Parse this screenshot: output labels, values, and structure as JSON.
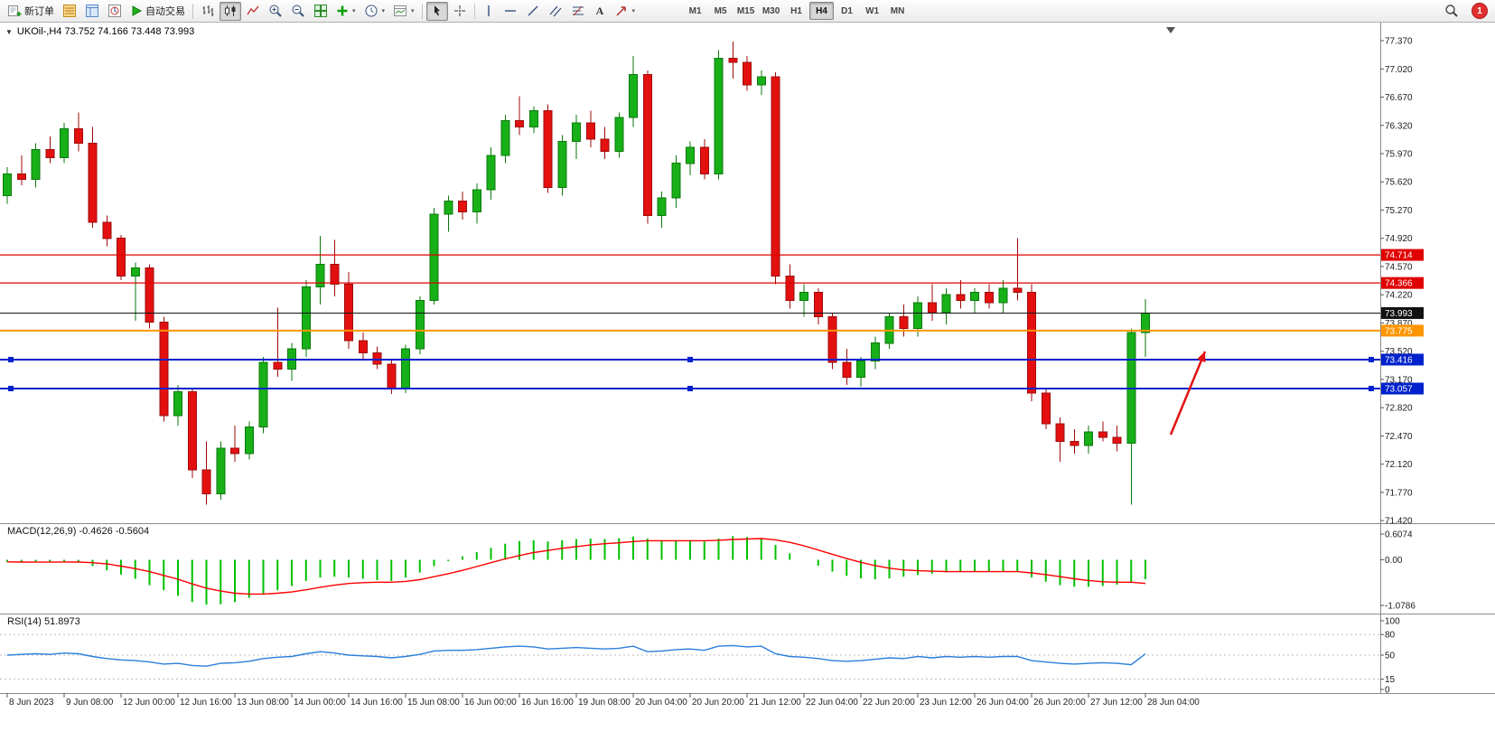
{
  "toolbar": {
    "new_order_label": "新订单",
    "autotrading_label": "自动交易",
    "timeframes": [
      "M1",
      "M5",
      "M15",
      "M30",
      "H1",
      "H4",
      "D1",
      "W1",
      "MN"
    ],
    "active_timeframe": "H4",
    "notification_count": "1",
    "icon_names": [
      "new-order",
      "market-watch",
      "data-window",
      "navigator",
      "autotrading",
      "bar-chart",
      "candlestick-chart",
      "line-chart",
      "zoom-in",
      "zoom-out",
      "tile-windows",
      "indicators",
      "periods",
      "templates",
      "cursor",
      "crosshair",
      "vertical-line",
      "horizontal-line",
      "trendline",
      "equidistant-channel",
      "fibonacci",
      "text",
      "arrows",
      "search",
      "notification"
    ]
  },
  "chart": {
    "marker": "▼",
    "title": "UKOil-,H4 73.752 74.166 73.448 73.993",
    "symbol": "UKOil-",
    "period": "H4",
    "ohlc_caption": {
      "open": "73.752",
      "high": "74.166",
      "low": "73.448",
      "close": "73.993"
    }
  },
  "colors": {
    "bull": "#18b018",
    "bull_border": "#0b7a0b",
    "bear": "#e41010",
    "bear_border": "#9e0b0b",
    "macd_bar": "#00c000",
    "macd_signal": "#ff0000",
    "rsi_line": "#2a7fdc",
    "axis_text": "#1a1a1a"
  },
  "hlines": [
    {
      "price": 74.714,
      "label": "74.714",
      "color": "#e00000",
      "width": 1.2,
      "handles": false
    },
    {
      "price": 74.366,
      "label": "74.366",
      "color": "#e00000",
      "width": 1.2,
      "handles": false
    },
    {
      "price": 73.993,
      "label": "73.993",
      "color": "#111111",
      "width": 1,
      "handles": false
    },
    {
      "price": 73.775,
      "label": "73.775",
      "color": "#ff9500",
      "width": 2,
      "handles": false
    },
    {
      "price": 73.416,
      "label": "73.416",
      "color": "#0022cc",
      "width": 2,
      "handles": true
    },
    {
      "price": 73.057,
      "label": "73.057",
      "color": "#0022cc",
      "width": 2,
      "handles": true
    }
  ],
  "annotation": {
    "type": "arrow",
    "color": "#e31212",
    "from": [
      1296,
      456
    ],
    "to": [
      1334,
      364
    ]
  },
  "time_axis": [
    "8 Jun 2023",
    "9 Jun 08:00",
    "12 Jun 00:00",
    "12 Jun 16:00",
    "13 Jun 08:00",
    "14 Jun 00:00",
    "14 Jun 16:00",
    "15 Jun 08:00",
    "16 Jun 00:00",
    "16 Jun 16:00",
    "19 Jun 08:00",
    "20 Jun 04:00",
    "20 Jun 20:00",
    "21 Jun 12:00",
    "22 Jun 04:00",
    "22 Jun 20:00",
    "23 Jun 12:00",
    "26 Jun 04:00",
    "26 Jun 20:00",
    "27 Jun 12:00",
    "28 Jun 04:00"
  ],
  "chart_data": {
    "type": "candlestick",
    "symbol": "UKOil-",
    "timeframe": "H4",
    "y_range": [
      71.41,
      77.46
    ],
    "price_ticks": [
      "77.370",
      "77.020",
      "76.670",
      "76.320",
      "75.970",
      "75.620",
      "75.270",
      "74.920",
      "74.570",
      "74.220",
      "73.870",
      "73.520",
      "73.170",
      "72.820",
      "72.470",
      "72.120",
      "71.770",
      "71.420"
    ],
    "ohlc": [
      [
        75.45,
        75.8,
        75.35,
        75.72
      ],
      [
        75.72,
        75.95,
        75.58,
        75.65
      ],
      [
        75.65,
        76.1,
        75.55,
        76.02
      ],
      [
        76.02,
        76.18,
        75.85,
        75.92
      ],
      [
        75.92,
        76.35,
        75.85,
        76.28
      ],
      [
        76.28,
        76.48,
        76.0,
        76.1
      ],
      [
        76.1,
        76.3,
        75.05,
        75.12
      ],
      [
        75.12,
        75.2,
        74.82,
        74.92
      ],
      [
        74.92,
        74.96,
        74.4,
        74.45
      ],
      [
        74.45,
        74.62,
        73.9,
        74.55
      ],
      [
        74.55,
        74.6,
        73.8,
        73.88
      ],
      [
        73.88,
        73.95,
        72.65,
        72.72
      ],
      [
        72.72,
        73.1,
        72.6,
        73.02
      ],
      [
        73.02,
        73.05,
        71.95,
        72.05
      ],
      [
        72.05,
        72.4,
        71.62,
        71.75
      ],
      [
        71.75,
        72.4,
        71.68,
        72.32
      ],
      [
        72.32,
        72.6,
        72.15,
        72.25
      ],
      [
        72.25,
        72.65,
        72.18,
        72.58
      ],
      [
        72.58,
        73.45,
        72.5,
        73.38
      ],
      [
        73.38,
        74.06,
        73.2,
        73.3
      ],
      [
        73.3,
        73.62,
        73.15,
        73.55
      ],
      [
        73.55,
        74.4,
        73.45,
        74.32
      ],
      [
        74.32,
        74.95,
        74.1,
        74.6
      ],
      [
        74.6,
        74.9,
        74.2,
        74.35
      ],
      [
        74.35,
        74.5,
        73.55,
        73.65
      ],
      [
        73.65,
        73.75,
        73.42,
        73.5
      ],
      [
        73.5,
        73.58,
        73.3,
        73.36
      ],
      [
        73.36,
        73.42,
        72.99,
        73.05
      ],
      [
        73.05,
        73.6,
        73.0,
        73.55
      ],
      [
        73.55,
        74.2,
        73.48,
        74.15
      ],
      [
        74.15,
        75.3,
        74.1,
        75.22
      ],
      [
        75.22,
        75.45,
        75.0,
        75.38
      ],
      [
        75.38,
        75.5,
        75.15,
        75.25
      ],
      [
        75.25,
        75.6,
        75.1,
        75.52
      ],
      [
        75.52,
        76.05,
        75.4,
        75.95
      ],
      [
        75.95,
        76.45,
        75.85,
        76.38
      ],
      [
        76.38,
        76.68,
        76.2,
        76.3
      ],
      [
        76.3,
        76.55,
        76.22,
        76.5
      ],
      [
        76.5,
        76.58,
        75.48,
        75.55
      ],
      [
        75.55,
        76.2,
        75.45,
        76.12
      ],
      [
        76.12,
        76.45,
        75.9,
        76.35
      ],
      [
        76.35,
        76.5,
        76.05,
        76.15
      ],
      [
        76.15,
        76.3,
        75.9,
        76.0
      ],
      [
        76.0,
        76.48,
        75.92,
        76.42
      ],
      [
        76.42,
        77.18,
        76.3,
        76.95
      ],
      [
        76.95,
        77.0,
        75.1,
        75.2
      ],
      [
        75.2,
        75.5,
        75.05,
        75.42
      ],
      [
        75.42,
        75.95,
        75.3,
        75.85
      ],
      [
        75.85,
        76.12,
        75.7,
        76.05
      ],
      [
        76.05,
        76.15,
        75.65,
        75.72
      ],
      [
        75.72,
        77.25,
        75.65,
        77.15
      ],
      [
        77.15,
        77.36,
        76.9,
        77.1
      ],
      [
        77.1,
        77.18,
        76.75,
        76.82
      ],
      [
        76.82,
        77.0,
        76.7,
        76.92
      ],
      [
        76.92,
        76.98,
        74.35,
        74.45
      ],
      [
        74.45,
        74.6,
        74.05,
        74.15
      ],
      [
        74.15,
        74.35,
        73.95,
        74.25
      ],
      [
        74.25,
        74.3,
        73.85,
        73.95
      ],
      [
        73.95,
        74.0,
        73.3,
        73.38
      ],
      [
        73.38,
        73.55,
        73.1,
        73.2
      ],
      [
        73.2,
        73.45,
        73.08,
        73.4
      ],
      [
        73.4,
        73.7,
        73.3,
        73.62
      ],
      [
        73.62,
        74.0,
        73.55,
        73.95
      ],
      [
        73.95,
        74.1,
        73.7,
        73.8
      ],
      [
        73.8,
        74.2,
        73.7,
        74.12
      ],
      [
        74.12,
        74.35,
        73.9,
        74.0
      ],
      [
        74.0,
        74.3,
        73.85,
        74.22
      ],
      [
        74.22,
        74.4,
        74.05,
        74.15
      ],
      [
        74.15,
        74.3,
        74.0,
        74.25
      ],
      [
        74.25,
        74.35,
        74.05,
        74.12
      ],
      [
        74.12,
        74.4,
        74.0,
        74.3
      ],
      [
        74.3,
        74.92,
        74.15,
        74.25
      ],
      [
        74.25,
        74.35,
        72.9,
        73.0
      ],
      [
        73.0,
        73.05,
        72.55,
        72.62
      ],
      [
        72.62,
        72.7,
        72.15,
        72.4
      ],
      [
        72.4,
        72.55,
        72.25,
        72.35
      ],
      [
        72.35,
        72.6,
        72.25,
        72.52
      ],
      [
        72.52,
        72.65,
        72.4,
        72.45
      ],
      [
        72.45,
        72.6,
        72.28,
        72.38
      ],
      [
        72.38,
        73.8,
        71.62,
        73.75
      ],
      [
        73.752,
        74.166,
        73.448,
        73.993
      ]
    ],
    "macd": {
      "label": "MACD(12,26,9) -0.4626 -0.5604",
      "range": [
        -1.0786,
        0.6074
      ],
      "axis": [
        "0.6074",
        "0.00",
        "-1.0786"
      ],
      "values_main": [
        -0.05,
        -0.07,
        -0.06,
        -0.05,
        -0.04,
        -0.06,
        -0.15,
        -0.25,
        -0.35,
        -0.45,
        -0.6,
        -0.72,
        -0.85,
        -1.0,
        -1.06,
        -1.05,
        -1.0,
        -0.9,
        -0.8,
        -0.72,
        -0.62,
        -0.5,
        -0.42,
        -0.4,
        -0.42,
        -0.45,
        -0.48,
        -0.5,
        -0.42,
        -0.3,
        -0.15,
        -0.03,
        0.08,
        0.18,
        0.28,
        0.38,
        0.44,
        0.46,
        0.43,
        0.46,
        0.49,
        0.5,
        0.49,
        0.51,
        0.55,
        0.5,
        0.46,
        0.45,
        0.46,
        0.43,
        0.5,
        0.56,
        0.54,
        0.52,
        0.35,
        0.15,
        0.0,
        -0.14,
        -0.28,
        -0.38,
        -0.44,
        -0.46,
        -0.44,
        -0.4,
        -0.36,
        -0.33,
        -0.3,
        -0.28,
        -0.27,
        -0.27,
        -0.27,
        -0.28,
        -0.42,
        -0.52,
        -0.6,
        -0.64,
        -0.64,
        -0.62,
        -0.59,
        -0.53,
        -0.4626
      ],
      "signal": [
        -0.05,
        -0.055,
        -0.057,
        -0.056,
        -0.053,
        -0.054,
        -0.07,
        -0.1,
        -0.15,
        -0.21,
        -0.28,
        -0.37,
        -0.46,
        -0.57,
        -0.67,
        -0.74,
        -0.79,
        -0.81,
        -0.81,
        -0.79,
        -0.76,
        -0.71,
        -0.65,
        -0.6,
        -0.56,
        -0.54,
        -0.53,
        -0.53,
        -0.51,
        -0.47,
        -0.4,
        -0.33,
        -0.25,
        -0.16,
        -0.07,
        0.02,
        0.1,
        0.17,
        0.22,
        0.27,
        0.31,
        0.35,
        0.38,
        0.4,
        0.43,
        0.45,
        0.45,
        0.45,
        0.45,
        0.45,
        0.46,
        0.48,
        0.49,
        0.5,
        0.47,
        0.41,
        0.33,
        0.23,
        0.13,
        0.03,
        -0.06,
        -0.14,
        -0.2,
        -0.24,
        -0.26,
        -0.27,
        -0.28,
        -0.28,
        -0.28,
        -0.28,
        -0.28,
        -0.28,
        -0.31,
        -0.35,
        -0.4,
        -0.45,
        -0.49,
        -0.52,
        -0.53,
        -0.53,
        -0.5604
      ]
    },
    "rsi": {
      "label": "RSI(14) 51.8973",
      "axis": [
        "100",
        "80",
        "50",
        "15",
        "0"
      ],
      "levels": [
        80,
        50,
        15
      ],
      "values": [
        50,
        51,
        52,
        51,
        53,
        52,
        48,
        45,
        43,
        42,
        40,
        37,
        38,
        35,
        34,
        38,
        39,
        41,
        45,
        47,
        48,
        52,
        55,
        53,
        50,
        49,
        48,
        46,
        48,
        51,
        56,
        57,
        57,
        58,
        60,
        62,
        63,
        62,
        59,
        60,
        61,
        60,
        59,
        60,
        63,
        55,
        56,
        58,
        59,
        57,
        63,
        64,
        62,
        63,
        52,
        48,
        47,
        45,
        42,
        41,
        42,
        44,
        46,
        45,
        48,
        46,
        48,
        47,
        48,
        47,
        48,
        48,
        42,
        40,
        38,
        37,
        38,
        39,
        38,
        36,
        51.8973
      ]
    }
  }
}
